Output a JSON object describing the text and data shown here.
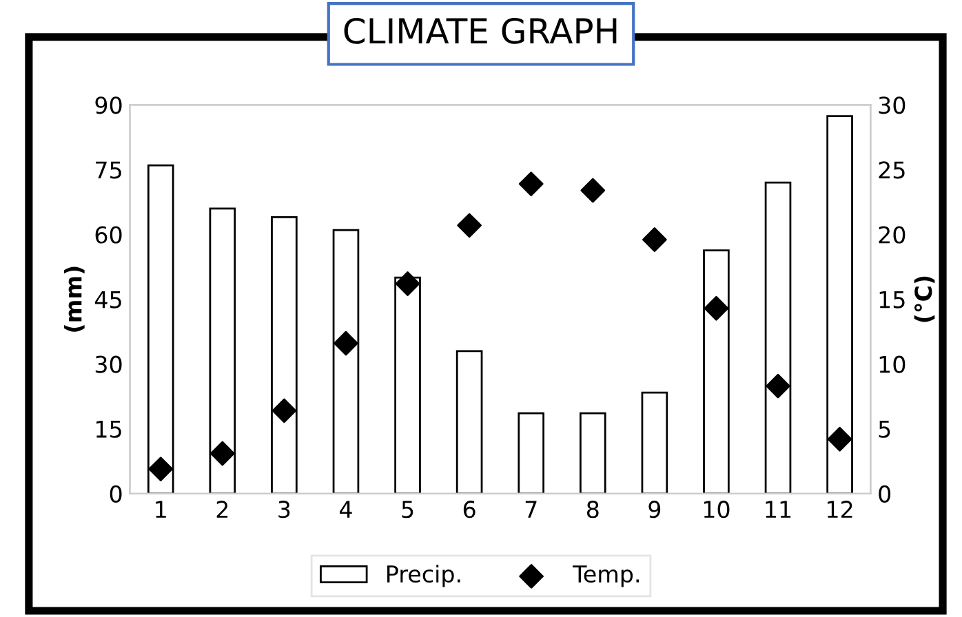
{
  "chart_data": {
    "type": "bar",
    "title": "CLIMATE GRAPH",
    "ylabel": "(mm)",
    "y2label": "(°C)",
    "categories": [
      "1",
      "2",
      "3",
      "4",
      "5",
      "6",
      "7",
      "8",
      "9",
      "10",
      "11",
      "12"
    ],
    "series": [
      {
        "name": "Precip.",
        "color": "#ffffff",
        "values": [
          76,
          66,
          64,
          61,
          50,
          33,
          18.6,
          18.6,
          23.4,
          56.3,
          72,
          87.4
        ]
      },
      {
        "name": "Temp.",
        "type": "scatter",
        "axis": "y2",
        "color": "#000000",
        "marker": "diamond",
        "values": [
          1.9,
          3.1,
          6.4,
          11.6,
          16.2,
          20.7,
          23.9,
          23.4,
          19.6,
          14.3,
          8.3,
          4.2
        ]
      }
    ],
    "ylim": [
      0,
      90
    ],
    "yticks": [
      0,
      15,
      30,
      45,
      60,
      75,
      90
    ],
    "y2lim": [
      0,
      30
    ],
    "y2ticks": [
      0,
      5,
      10,
      15,
      20,
      25,
      30
    ],
    "grid": false,
    "legend": "bottom"
  }
}
